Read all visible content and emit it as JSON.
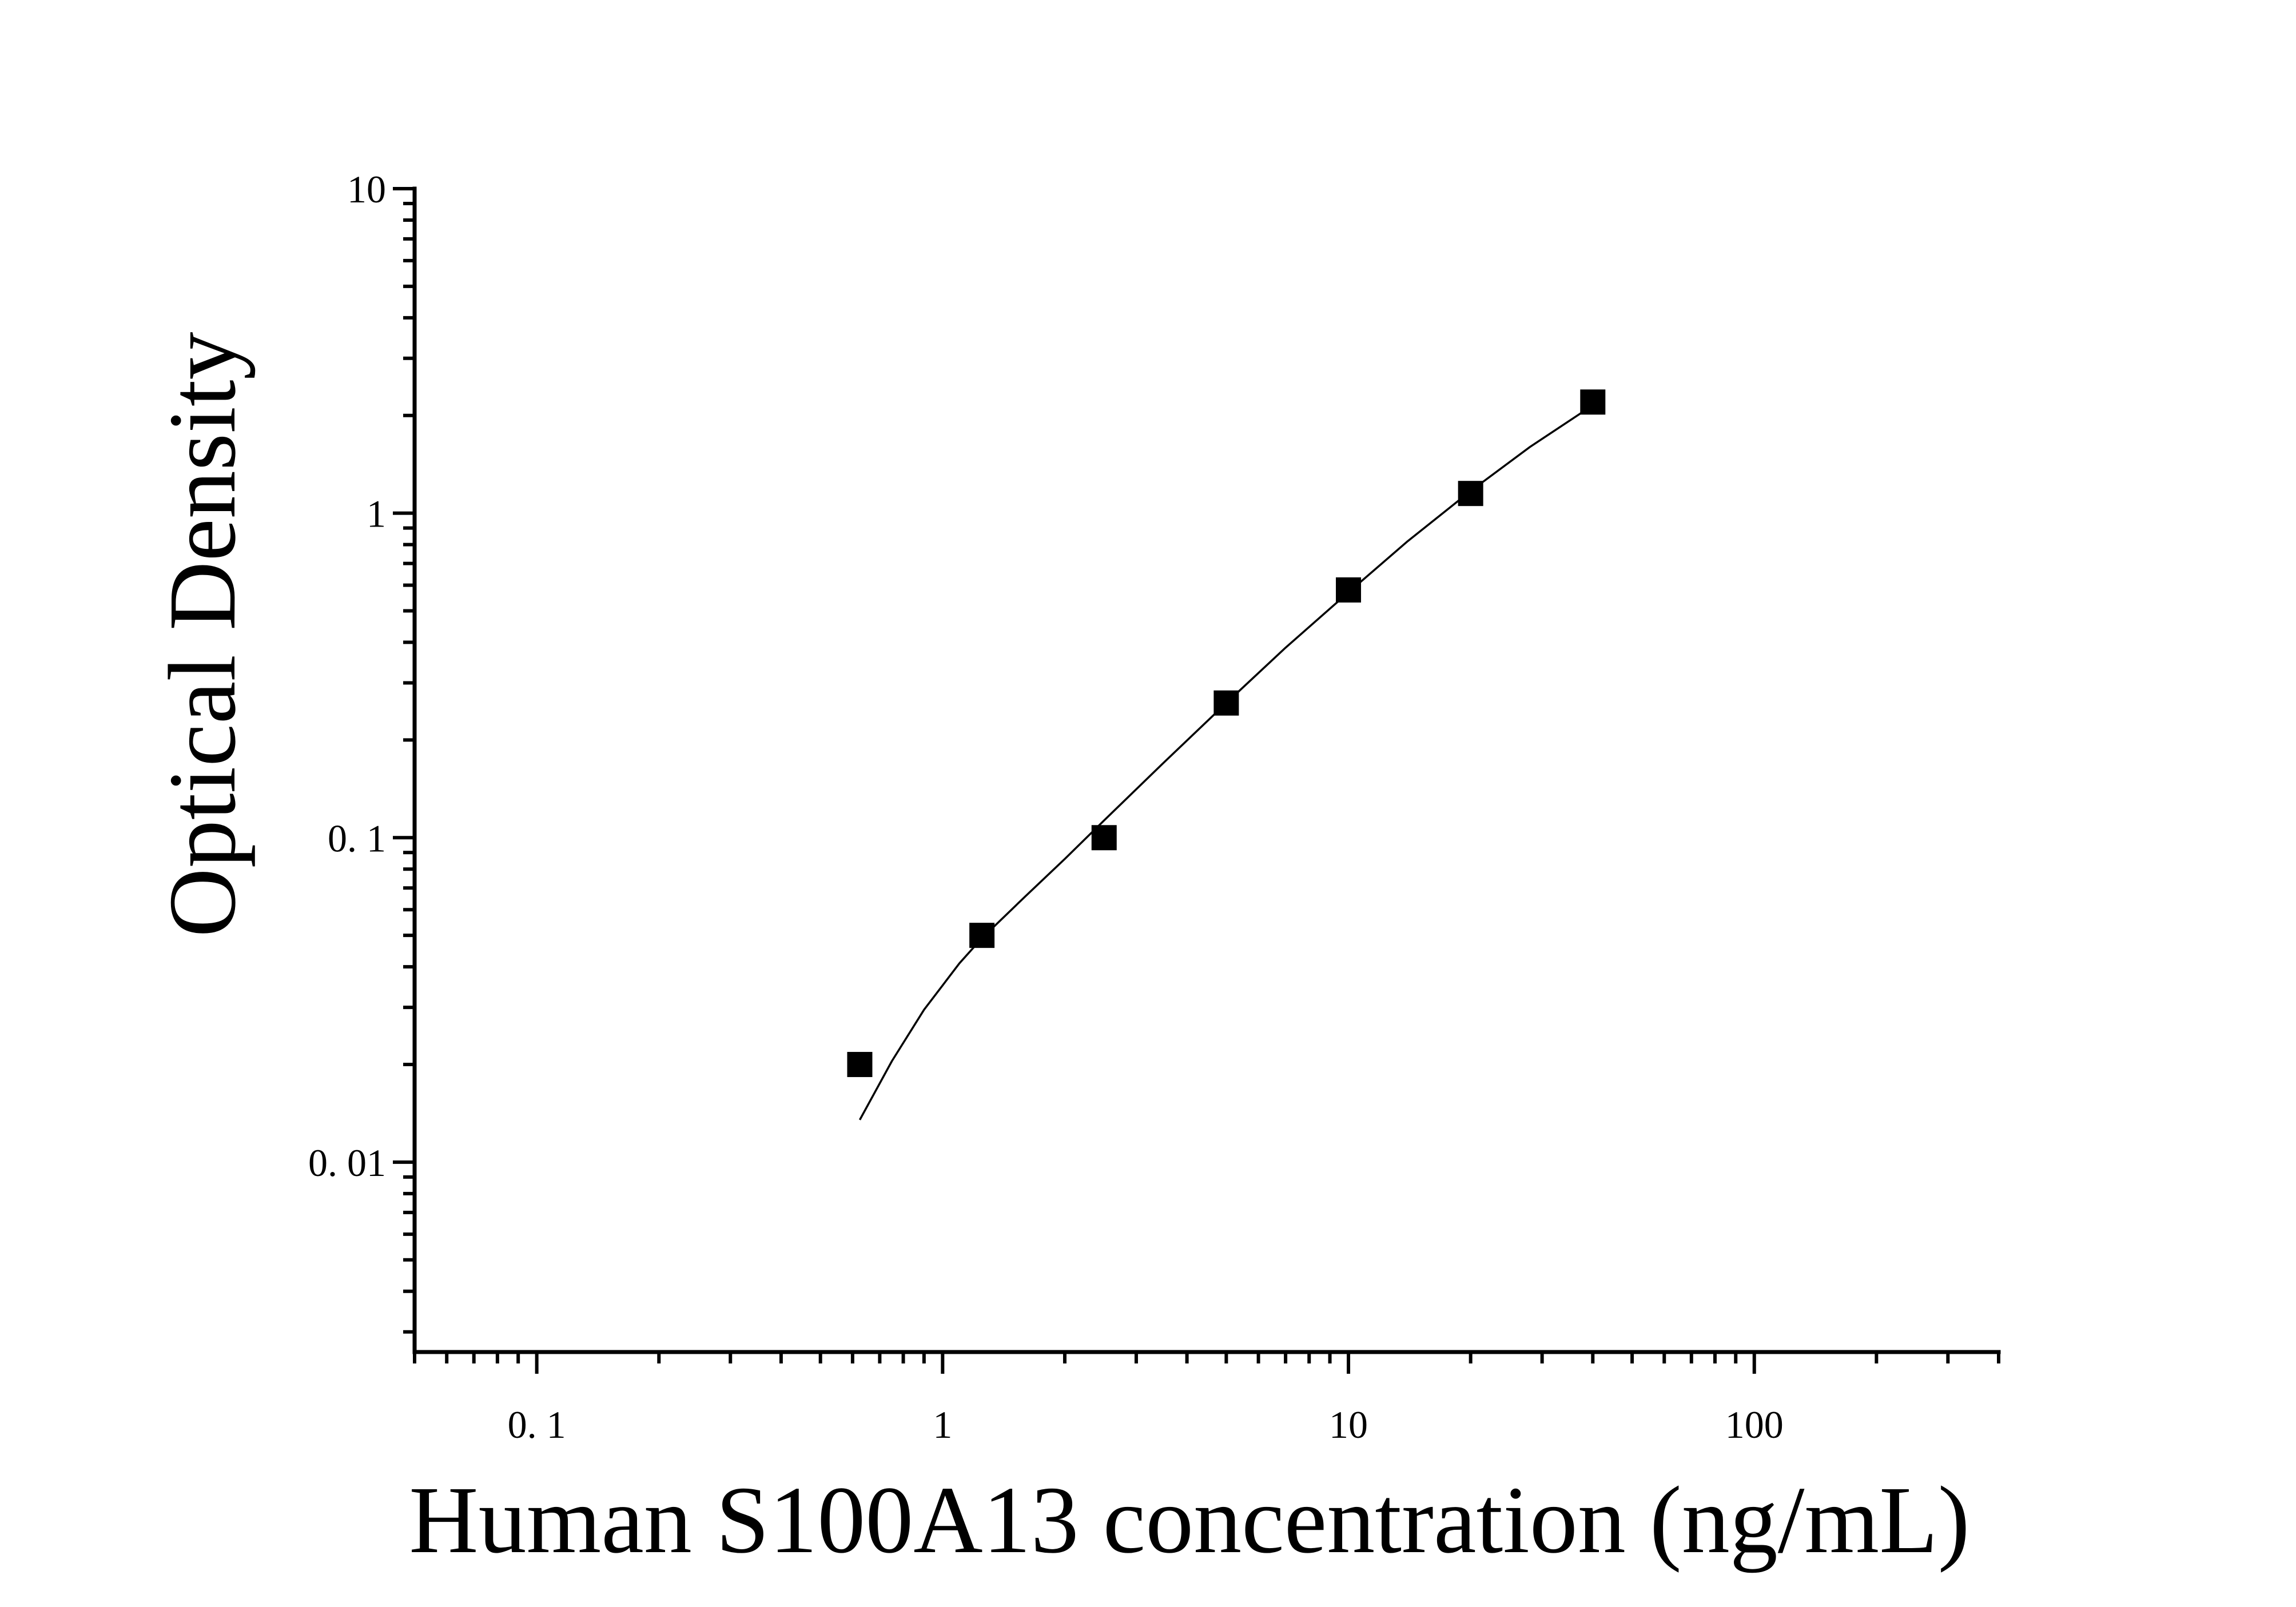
{
  "chart_data": {
    "type": "scatter",
    "xlabel": "Human S100A13 concentration (ng/mL)",
    "ylabel": "Optical Density",
    "x_scale": "log",
    "y_scale": "log",
    "xlim": [
      0.05,
      400
    ],
    "ylim": [
      0.0026,
      10
    ],
    "x_ticks": [
      {
        "value": 0.1,
        "label": "0. 1"
      },
      {
        "value": 1,
        "label": "1"
      },
      {
        "value": 10,
        "label": "10"
      },
      {
        "value": 100,
        "label": "100"
      }
    ],
    "y_ticks": [
      {
        "value": 10,
        "label": "10"
      },
      {
        "value": 1,
        "label": "1"
      },
      {
        "value": 0.1,
        "label": "0. 1"
      },
      {
        "value": 0.01,
        "label": "0. 01"
      }
    ],
    "grid": false,
    "series": [
      {
        "marker": "square",
        "color": "#000000",
        "points": [
          {
            "x": 0.625,
            "y": 0.02
          },
          {
            "x": 1.25,
            "y": 0.05
          },
          {
            "x": 2.5,
            "y": 0.1
          },
          {
            "x": 5,
            "y": 0.26
          },
          {
            "x": 10,
            "y": 0.58
          },
          {
            "x": 20,
            "y": 1.15
          },
          {
            "x": 40,
            "y": 2.2
          }
        ]
      }
    ],
    "fit_curve": {
      "color": "#000000",
      "points": [
        {
          "x": 0.625,
          "y": 0.0135
        },
        {
          "x": 0.75,
          "y": 0.0205
        },
        {
          "x": 0.9,
          "y": 0.0295
        },
        {
          "x": 1.1,
          "y": 0.041
        },
        {
          "x": 1.25,
          "y": 0.049
        },
        {
          "x": 1.6,
          "y": 0.066
        },
        {
          "x": 2.0,
          "y": 0.086
        },
        {
          "x": 2.5,
          "y": 0.113
        },
        {
          "x": 3.5,
          "y": 0.17
        },
        {
          "x": 5,
          "y": 0.26
        },
        {
          "x": 7,
          "y": 0.385
        },
        {
          "x": 10,
          "y": 0.57
        },
        {
          "x": 14,
          "y": 0.82
        },
        {
          "x": 20,
          "y": 1.17
        },
        {
          "x": 28,
          "y": 1.6
        },
        {
          "x": 40,
          "y": 2.15
        }
      ]
    }
  }
}
